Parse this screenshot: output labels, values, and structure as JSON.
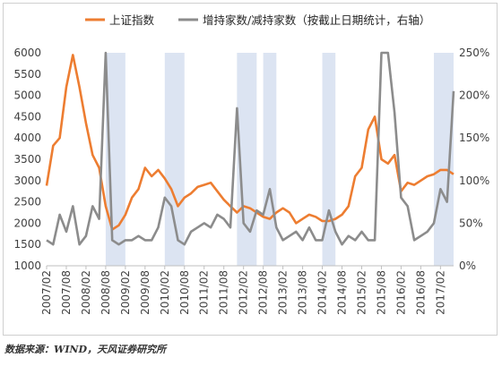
{
  "chart_data": {
    "type": "line",
    "x": [
      "2007/02",
      "2007/04",
      "2007/06",
      "2007/08",
      "2007/10",
      "2007/12",
      "2008/02",
      "2008/04",
      "2008/06",
      "2008/08",
      "2008/10",
      "2008/12",
      "2009/02",
      "2009/04",
      "2009/06",
      "2009/08",
      "2009/10",
      "2009/12",
      "2010/02",
      "2010/04",
      "2010/06",
      "2010/08",
      "2010/10",
      "2010/12",
      "2011/02",
      "2011/04",
      "2011/06",
      "2011/08",
      "2011/10",
      "2011/12",
      "2012/02",
      "2012/04",
      "2012/06",
      "2012/08",
      "2012/10",
      "2012/12",
      "2013/02",
      "2013/04",
      "2013/06",
      "2013/08",
      "2013/10",
      "2013/12",
      "2014/02",
      "2014/04",
      "2014/06",
      "2014/08",
      "2014/10",
      "2014/12",
      "2015/02",
      "2015/04",
      "2015/06",
      "2015/08",
      "2015/10",
      "2015/12",
      "2016/02",
      "2016/04",
      "2016/06",
      "2016/08",
      "2016/10",
      "2016/12",
      "2017/02",
      "2017/04",
      "2017/06"
    ],
    "x_tick_labels": [
      "2007/02",
      "2007/08",
      "2008/02",
      "2008/08",
      "2009/02",
      "2009/08",
      "2010/02",
      "2010/08",
      "2011/02",
      "2011/08",
      "2012/02",
      "2012/08",
      "2013/02",
      "2013/08",
      "2014/02",
      "2014/08",
      "2015/02",
      "2015/08",
      "2016/02",
      "2016/08",
      "2017/02"
    ],
    "series": [
      {
        "name": "上证指数",
        "axis": "left",
        "color": "#ED7D31",
        "values": [
          2880,
          3820,
          4000,
          5200,
          5950,
          5200,
          4350,
          3600,
          3300,
          2400,
          1850,
          1950,
          2200,
          2600,
          2800,
          3300,
          3100,
          3250,
          3050,
          2800,
          2400,
          2600,
          2700,
          2850,
          2900,
          2950,
          2750,
          2550,
          2400,
          2250,
          2400,
          2350,
          2250,
          2150,
          2100,
          2250,
          2350,
          2250,
          2000,
          2100,
          2200,
          2150,
          2050,
          2050,
          2100,
          2200,
          2400,
          3100,
          3300,
          4200,
          4500,
          3500,
          3400,
          3600,
          2750,
          2950,
          2900,
          3000,
          3100,
          3150,
          3250,
          3250,
          3150
        ]
      },
      {
        "name": "增持家数/减持家数（按截止日期统计，右轴）",
        "axis": "right",
        "color": "#8C8C8C",
        "values": [
          0.3,
          0.25,
          0.6,
          0.4,
          0.7,
          0.25,
          0.35,
          0.7,
          0.55,
          2.5,
          0.3,
          0.25,
          0.3,
          0.3,
          0.35,
          0.3,
          0.3,
          0.45,
          0.8,
          0.7,
          0.3,
          0.25,
          0.4,
          0.45,
          0.5,
          0.45,
          0.6,
          0.55,
          0.45,
          1.85,
          0.5,
          0.4,
          0.65,
          0.6,
          0.9,
          0.45,
          0.3,
          0.35,
          0.4,
          0.3,
          0.45,
          0.3,
          0.3,
          0.65,
          0.4,
          0.25,
          0.35,
          0.3,
          0.4,
          0.3,
          0.3,
          2.5,
          2.5,
          1.8,
          0.8,
          0.7,
          0.3,
          0.35,
          0.4,
          0.5,
          0.9,
          0.75,
          2.05
        ]
      }
    ],
    "y_left": {
      "min": 1000,
      "max": 6000,
      "ticks": [
        "1000",
        "1500",
        "2000",
        "2500",
        "3000",
        "3500",
        "4000",
        "4500",
        "5000",
        "5500",
        "6000"
      ]
    },
    "y_right": {
      "min": 0,
      "max": 2.5,
      "ticks": [
        "0%",
        "50%",
        "100%",
        "150%",
        "200%",
        "250%"
      ]
    },
    "shaded_periods": [
      [
        "2008/08",
        "2009/02"
      ],
      [
        "2010/02",
        "2010/08"
      ],
      [
        "2011/12",
        "2012/06"
      ],
      [
        "2012/08",
        "2012/12"
      ],
      [
        "2014/02",
        "2014/06"
      ],
      [
        "2016/12",
        "2017/06"
      ]
    ],
    "shade_color": "#DCE4F2",
    "legend_position": "top",
    "grid": false
  },
  "source": "数据来源：WIND，天风证券研究所"
}
